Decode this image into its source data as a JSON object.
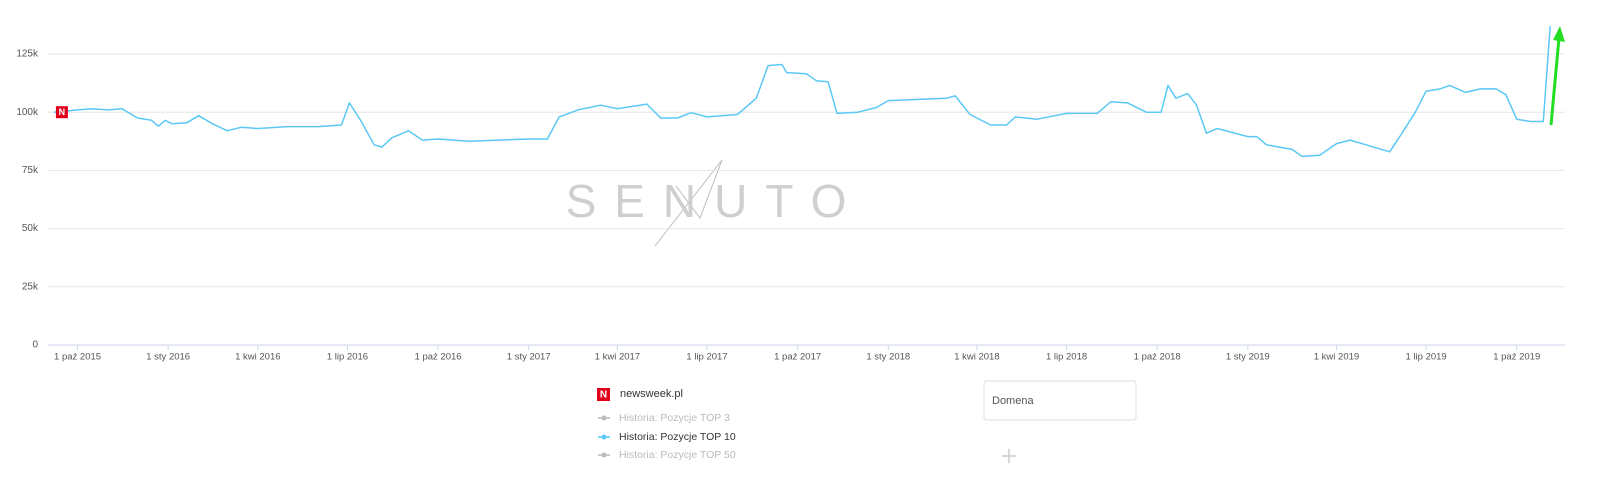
{
  "chart_data": {
    "type": "line",
    "series": [
      {
        "name": "Historia: Pozycje TOP 10",
        "color": "#5bc8f5",
        "values": [
          100000,
          101000,
          101500,
          101000,
          101500,
          97500,
          96500,
          94000,
          96500,
          95000,
          95500,
          98500,
          95000,
          92000,
          93500,
          93000,
          93800,
          93800,
          94500,
          104000,
          96000,
          86000,
          85000,
          89000,
          92000,
          88000,
          88500,
          87500,
          88000,
          88500,
          88500,
          98000,
          101000,
          103000,
          101500,
          103500,
          97500,
          97500,
          99800,
          98000,
          99000,
          106000,
          120000,
          120500,
          117000,
          116500,
          113500,
          113000,
          99500,
          100000,
          102000,
          105000,
          105500,
          106000,
          107000,
          99000,
          94500,
          94500,
          98000,
          97000,
          99500,
          99500,
          104500,
          104000,
          100000,
          100000,
          111500,
          106000,
          108000,
          103000,
          91000,
          93000,
          89500,
          89500,
          86000,
          84000,
          81000,
          81500,
          86500,
          88000,
          86000,
          83000,
          90000,
          100000,
          109000,
          110000,
          111500,
          108500,
          110000,
          110000,
          107500,
          97000,
          96000,
          96000,
          137000
        ]
      }
    ],
    "x": [
      "2015-09-07",
      "2015-10-01",
      "2015-10-15",
      "2015-11-01",
      "2015-11-15",
      "2015-12-01",
      "2015-12-15",
      "2015-12-22",
      "2015-12-29",
      "2016-01-05",
      "2016-01-20",
      "2016-02-01",
      "2016-02-15",
      "2016-03-01",
      "2016-03-15",
      "2016-04-01",
      "2016-05-01",
      "2016-06-01",
      "2016-06-25",
      "2016-07-03",
      "2016-07-15",
      "2016-07-28",
      "2016-08-05",
      "2016-08-15",
      "2016-09-01",
      "2016-09-15",
      "2016-10-01",
      "2016-11-01",
      "2016-12-01",
      "2017-01-01",
      "2017-01-20",
      "2017-02-01",
      "2017-02-20",
      "2017-03-15",
      "2017-04-01",
      "2017-05-01",
      "2017-05-15",
      "2017-06-01",
      "2017-06-15",
      "2017-07-01",
      "2017-08-01",
      "2017-08-20",
      "2017-09-01",
      "2017-09-15",
      "2017-09-20",
      "2017-10-10",
      "2017-10-20",
      "2017-11-01",
      "2017-11-10",
      "2017-12-01",
      "2017-12-20",
      "2018-01-01",
      "2018-02-01",
      "2018-03-01",
      "2018-03-10",
      "2018-03-25",
      "2018-04-15",
      "2018-05-01",
      "2018-05-10",
      "2018-06-01",
      "2018-07-01",
      "2018-08-01",
      "2018-08-15",
      "2018-09-01",
      "2018-09-20",
      "2018-10-05",
      "2018-10-12",
      "2018-10-20",
      "2018-11-01",
      "2018-11-10",
      "2018-11-20",
      "2018-12-01",
      "2019-01-01",
      "2019-01-10",
      "2019-01-20",
      "2019-02-15",
      "2019-02-25",
      "2019-03-15",
      "2019-04-01",
      "2019-04-15",
      "2019-05-01",
      "2019-05-25",
      "2019-06-05",
      "2019-06-20",
      "2019-07-01",
      "2019-07-15",
      "2019-07-25",
      "2019-08-10",
      "2019-08-25",
      "2019-09-10",
      "2019-09-20",
      "2019-10-01",
      "2019-10-15",
      "2019-10-28",
      "2019-11-04"
    ],
    "xlim": [
      "2015-09-01",
      "2019-11-19"
    ],
    "xticks": [
      {
        "value": "2015-10-01",
        "label": "1 paź 2015"
      },
      {
        "value": "2016-01-01",
        "label": "1 sty 2016"
      },
      {
        "value": "2016-04-01",
        "label": "1 kwi 2016"
      },
      {
        "value": "2016-07-01",
        "label": "1 lip 2016"
      },
      {
        "value": "2016-10-01",
        "label": "1 paź 2016"
      },
      {
        "value": "2017-01-01",
        "label": "1 sty 2017"
      },
      {
        "value": "2017-04-01",
        "label": "1 kwi 2017"
      },
      {
        "value": "2017-07-01",
        "label": "1 lip 2017"
      },
      {
        "value": "2017-10-01",
        "label": "1 paź 2017"
      },
      {
        "value": "2018-01-01",
        "label": "1 sty 2018"
      },
      {
        "value": "2018-04-01",
        "label": "1 kwi 2018"
      },
      {
        "value": "2018-07-01",
        "label": "1 lip 2018"
      },
      {
        "value": "2018-10-01",
        "label": "1 paź 2018"
      },
      {
        "value": "2019-01-01",
        "label": "1 sty 2019"
      },
      {
        "value": "2019-04-01",
        "label": "1 kwi 2019"
      },
      {
        "value": "2019-07-01",
        "label": "1 lip 2019"
      },
      {
        "value": "2019-10-01",
        "label": "1 paź 2019"
      }
    ],
    "ylim": [
      0,
      125000
    ],
    "yticks": [
      0,
      {
        "value": 25000,
        "label": "25k"
      },
      {
        "value": 50000,
        "label": "50k"
      },
      {
        "value": 75000,
        "label": "75k"
      },
      {
        "value": 100000,
        "label": "100k"
      },
      {
        "value": 125000,
        "label": "125k"
      }
    ],
    "grid": true
  },
  "watermark": "SENUTO",
  "legend": {
    "logo_letter": "N",
    "domain": "newsweek.pl",
    "inactive": [
      "Historia: Pozycje TOP 3",
      "Historia: Pozycje TOP 50"
    ],
    "inactive_color": "#bbbbbb"
  },
  "domain_input": {
    "placeholder": "Domena"
  }
}
